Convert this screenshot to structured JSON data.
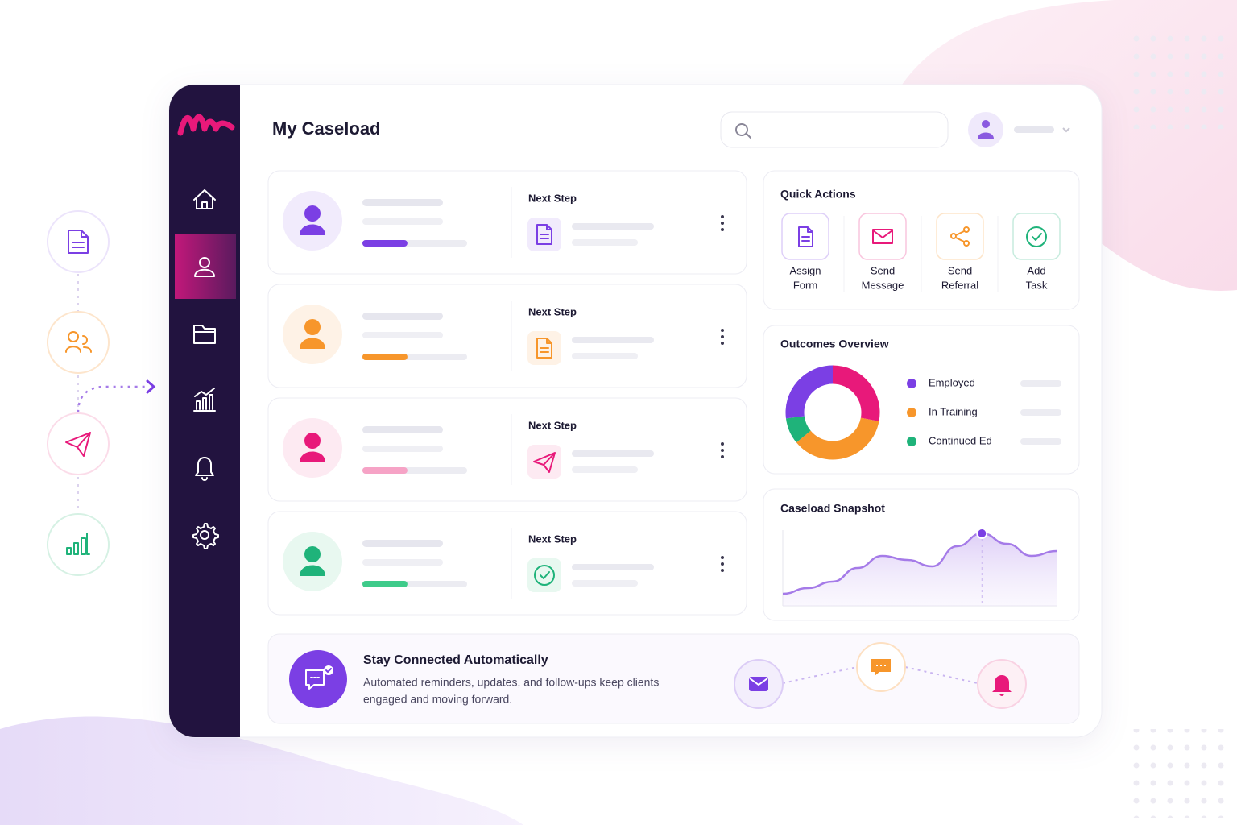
{
  "header": {
    "title": "My Caseload"
  },
  "cards": [
    {
      "next_step": "Next Step",
      "color": "#7b3fe4",
      "tint": "#f1ebfc",
      "bar": "#7b3fe4",
      "progress": 43
    },
    {
      "next_step": "Next Step",
      "color": "#f7962b",
      "tint": "#fef2e6",
      "bar": "#f7962b",
      "progress": 43
    },
    {
      "next_step": "Next Step",
      "color": "#e8197a",
      "tint": "#fdeaf2",
      "bar": "#f6a3c6",
      "progress": 43
    },
    {
      "next_step": "Next Step",
      "color": "#1fb37a",
      "tint": "#e8f8f0",
      "bar": "#3ecb8a",
      "progress": 43
    }
  ],
  "quick_actions": {
    "title": "Quick Actions",
    "items": [
      {
        "label": [
          "Assign",
          "Form"
        ],
        "color": "#7b3fe4"
      },
      {
        "label": [
          "Send",
          "Message"
        ],
        "color": "#e8197a"
      },
      {
        "label": [
          "Send",
          "Referral"
        ],
        "color": "#f7962b"
      },
      {
        "label": [
          "Add",
          "Task"
        ],
        "color": "#1fb37a"
      }
    ]
  },
  "outcomes": {
    "title": "Outcomes Overview",
    "segments": [
      {
        "color": "#e8197a",
        "value": 28
      },
      {
        "color": "#f7962b",
        "value": 36
      },
      {
        "color": "#1fb37a",
        "value": 9
      },
      {
        "color": "#7b3fe4",
        "value": 27
      }
    ],
    "legend": [
      {
        "name": "Employed",
        "color": "#7b3fe4"
      },
      {
        "name": "In Training",
        "color": "#f7962b"
      },
      {
        "name": "Continued Ed",
        "color": "#1fb37a"
      }
    ]
  },
  "snapshot": {
    "title": "Caseload Snapshot",
    "values": [
      15,
      22,
      30,
      47,
      62,
      57,
      49,
      74,
      90,
      77,
      62,
      68
    ],
    "ylim": [
      0,
      100
    ],
    "highlight": 8,
    "color": "#a57be8"
  },
  "banner": {
    "title": "Stay Connected Automatically",
    "lines": [
      "Automated reminders, updates, and follow-ups keep clients",
      "engaged and moving forward."
    ]
  }
}
